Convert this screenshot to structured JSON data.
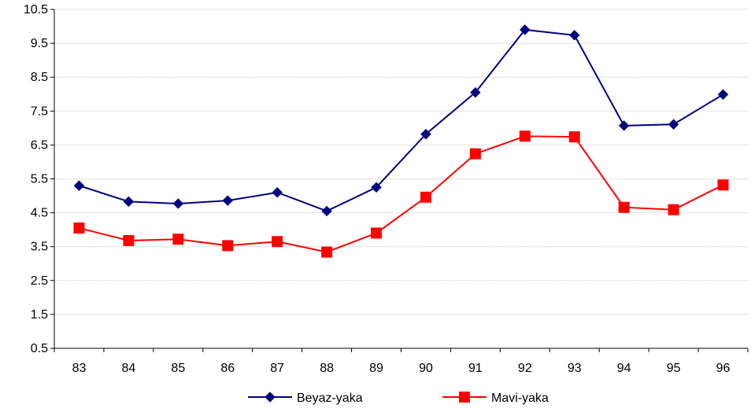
{
  "chart_data": {
    "type": "line",
    "title": "",
    "xlabel": "",
    "ylabel": "",
    "categories": [
      "83",
      "84",
      "85",
      "86",
      "87",
      "88",
      "89",
      "90",
      "91",
      "92",
      "93",
      "94",
      "95",
      "96"
    ],
    "ylim": [
      0.5,
      10.5
    ],
    "yticks": [
      "0.5",
      "1.5",
      "2.5",
      "3.5",
      "4.5",
      "5.5",
      "6.5",
      "7.5",
      "8.5",
      "9.5",
      "10.5"
    ],
    "grid": true,
    "legend_position": "bottom",
    "series": [
      {
        "name": "Beyaz-yaka",
        "color": "#000080",
        "marker": "diamond",
        "values": [
          5.3,
          4.83,
          4.77,
          4.86,
          5.1,
          4.55,
          5.25,
          6.82,
          8.05,
          9.9,
          9.74,
          7.07,
          7.11,
          7.99
        ]
      },
      {
        "name": "Mavi-yaka",
        "color": "#ff0000",
        "marker": "square",
        "values": [
          4.05,
          3.68,
          3.72,
          3.53,
          3.65,
          3.34,
          3.9,
          4.96,
          6.24,
          6.76,
          6.74,
          4.66,
          4.59,
          5.32
        ]
      }
    ]
  }
}
